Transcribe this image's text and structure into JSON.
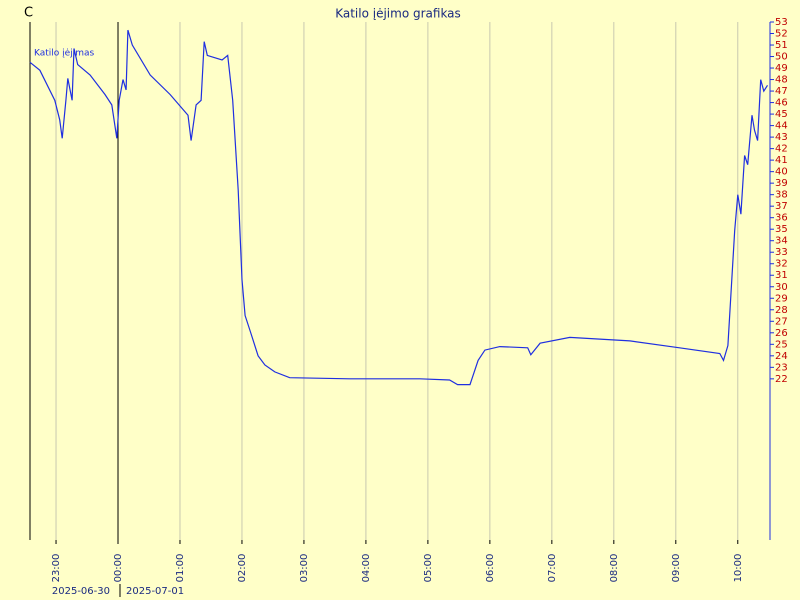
{
  "chart_data": {
    "type": "line",
    "title": "Katilo įėjimo grafikas",
    "y_label": "C",
    "background": "#ffffc8",
    "dates": [
      "2025-06-30",
      "2025-07-01"
    ],
    "day_boundary": 24,
    "series": [
      {
        "name": "Katilo įėjimas",
        "color": "#1f2fe0",
        "x": [
          22.58,
          22.74,
          22.98,
          23.06,
          23.1,
          23.16,
          23.19,
          23.26,
          23.29,
          23.35,
          23.55,
          23.79,
          23.9,
          23.98,
          24.02,
          24.08,
          24.13,
          24.16,
          24.23,
          24.52,
          24.84,
          25.13,
          25.18,
          25.26,
          25.34,
          25.39,
          25.44,
          25.68,
          25.77,
          25.85,
          25.94,
          26.0,
          26.05,
          26.13,
          26.26,
          26.37,
          26.53,
          26.77,
          27.74,
          28.87,
          29.35,
          29.48,
          29.68,
          29.81,
          29.92,
          30.16,
          30.61,
          30.66,
          30.81,
          31.29,
          32.26,
          33.06,
          33.71,
          33.77,
          33.84,
          33.95,
          34.0,
          34.05,
          34.11,
          34.16,
          34.23,
          34.27,
          34.32,
          34.37,
          34.42,
          34.48
        ],
        "values": [
          49.5,
          48.8,
          46.2,
          44.5,
          42.9,
          46.2,
          48.1,
          46.2,
          50.7,
          49.3,
          48.4,
          46.7,
          45.8,
          42.9,
          46.2,
          48.0,
          47.1,
          52.3,
          51.0,
          48.4,
          46.7,
          44.9,
          42.7,
          45.8,
          46.2,
          51.3,
          50.1,
          49.7,
          50.1,
          46.2,
          38.4,
          30.6,
          27.5,
          26.2,
          24.0,
          23.2,
          22.6,
          22.1,
          22.0,
          22.0,
          21.9,
          21.5,
          21.5,
          23.6,
          24.5,
          24.8,
          24.7,
          24.1,
          25.1,
          25.6,
          25.3,
          24.7,
          24.2,
          23.6,
          24.9,
          34.9,
          38.0,
          36.3,
          41.4,
          40.6,
          44.9,
          43.6,
          42.7,
          48.0,
          47.0,
          47.5
        ]
      }
    ],
    "xlim": [
      22.58,
      34.52
    ],
    "xticks": [
      {
        "value": 23,
        "label": "23:00"
      },
      {
        "value": 24,
        "label": "00:00"
      },
      {
        "value": 25,
        "label": "01:00"
      },
      {
        "value": 26,
        "label": "02:00"
      },
      {
        "value": 27,
        "label": "03:00"
      },
      {
        "value": 28,
        "label": "04:00"
      },
      {
        "value": 29,
        "label": "05:00"
      },
      {
        "value": 30,
        "label": "06:00"
      },
      {
        "value": 31,
        "label": "07:00"
      },
      {
        "value": 32,
        "label": "08:00"
      },
      {
        "value": 33,
        "label": "09:00"
      },
      {
        "value": 34,
        "label": "10:00"
      }
    ],
    "ylim": [
      8,
      53
    ],
    "yticks": [
      22,
      23,
      24,
      25,
      26,
      27,
      28,
      29,
      30,
      31,
      32,
      33,
      34,
      35,
      36,
      37,
      38,
      39,
      40,
      41,
      42,
      43,
      44,
      45,
      46,
      47,
      48,
      49,
      50,
      51,
      52,
      53
    ],
    "grid": true
  }
}
